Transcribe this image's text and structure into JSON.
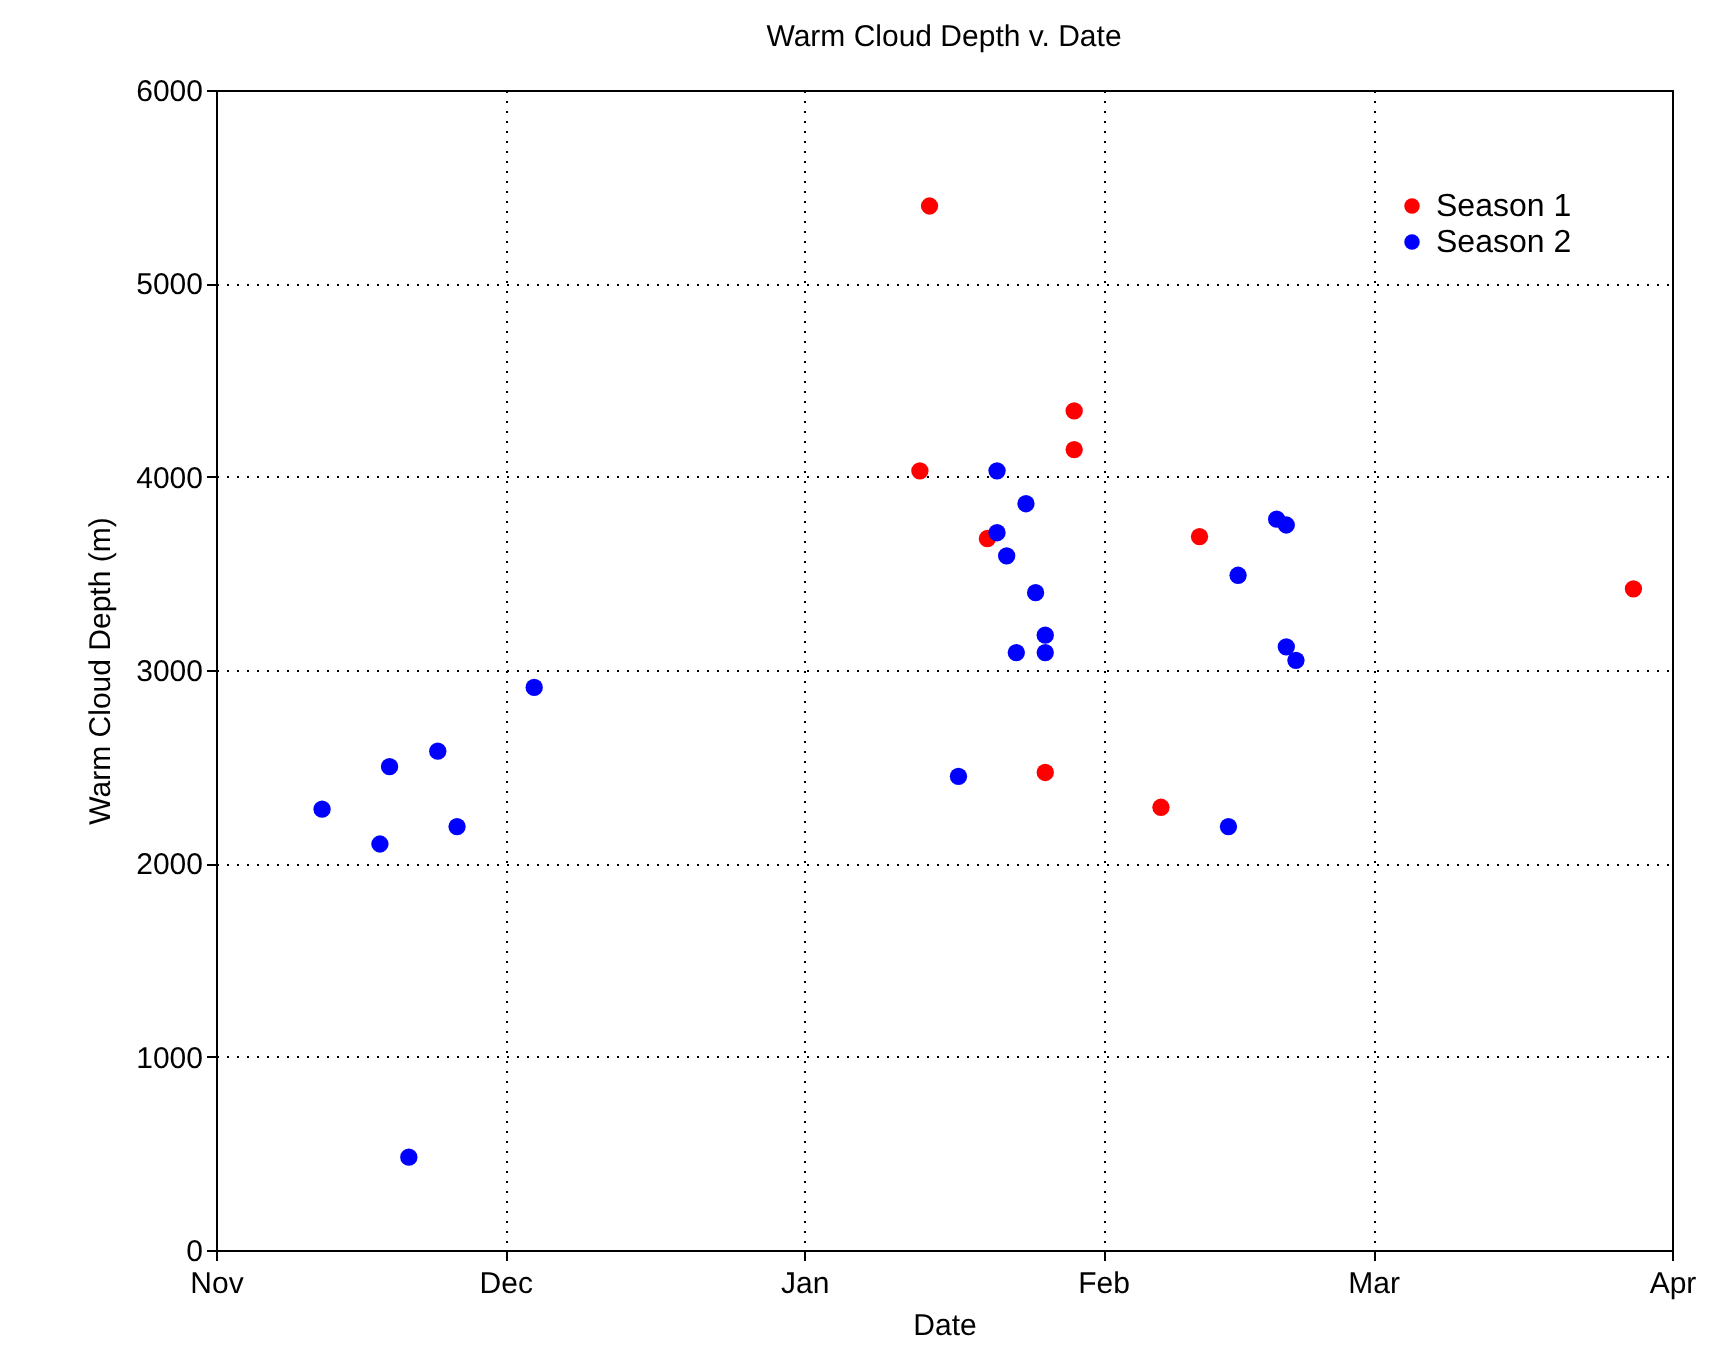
{
  "chart_data": {
    "type": "scatter",
    "title": "Warm Cloud Depth v. Date",
    "xlabel": "Date",
    "ylabel": "Warm Cloud Depth (m)",
    "xlim": [
      "2000-11-01",
      "2001-04-01"
    ],
    "xticks": [
      {
        "value": "2000-11-01",
        "label": "Nov"
      },
      {
        "value": "2000-12-01",
        "label": "Dec"
      },
      {
        "value": "2001-01-01",
        "label": "Jan"
      },
      {
        "value": "2001-02-01",
        "label": "Feb"
      },
      {
        "value": "2001-03-01",
        "label": "Mar"
      },
      {
        "value": "2001-04-01",
        "label": "Apr"
      }
    ],
    "ylim": [
      0,
      6000
    ],
    "yticks": [
      0,
      1000,
      2000,
      3000,
      4000,
      5000,
      6000
    ],
    "grid": true,
    "legend": "top right",
    "marker": "circle",
    "series": [
      {
        "name": "Season 1",
        "color": "#ff0000",
        "x": [
          "2001-01-14",
          "2001-01-13",
          "2001-01-20",
          "2001-01-26",
          "2001-01-29",
          "2001-01-29",
          "2001-02-07",
          "2001-02-11",
          "2001-03-28"
        ],
        "values": [
          5400,
          4030,
          3680,
          2470,
          4340,
          4140,
          2290,
          3690,
          3420
        ]
      },
      {
        "name": "Season 2",
        "color": "#0000ff",
        "x": [
          "2000-11-12",
          "2000-11-18",
          "2000-11-19",
          "2000-11-21",
          "2000-11-24",
          "2000-11-26",
          "2000-12-04",
          "2001-01-17",
          "2001-01-21",
          "2001-01-21",
          "2001-01-22",
          "2001-01-23",
          "2001-01-24",
          "2001-01-25",
          "2001-01-26",
          "2001-01-26",
          "2001-02-14",
          "2001-02-15",
          "2001-02-19",
          "2001-02-20",
          "2001-02-20",
          "2001-02-21"
        ],
        "values": [
          2280,
          2100,
          2500,
          480,
          2580,
          2190,
          2910,
          2450,
          4030,
          3710,
          3590,
          3090,
          3860,
          3400,
          3180,
          3090,
          2190,
          3490,
          3780,
          3750,
          3120,
          3050
        ]
      }
    ]
  }
}
